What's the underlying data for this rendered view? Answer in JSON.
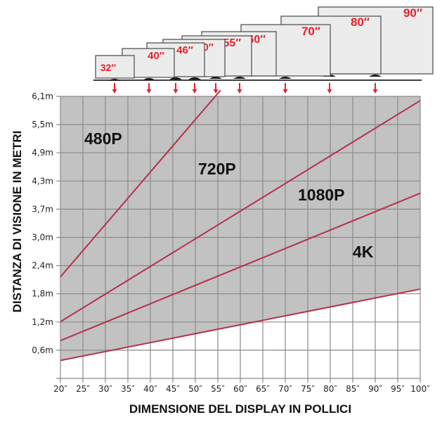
{
  "chart_data": {
    "type": "line",
    "title": "",
    "xlabel": "DIMENSIONE DEL DISPLAY  IN  POLLICI",
    "ylabel": "DISTANZA  DI  VISIONE  IN  METRI",
    "x_ticks": [
      "20″",
      "25″",
      "30″",
      "35″",
      "40″",
      "45″",
      "50″",
      "55″",
      "60″",
      "65″",
      "70″",
      "75″",
      "80″",
      "85″",
      "90″",
      "95″",
      "100″"
    ],
    "y_ticks": [
      "0,6m",
      "1,2m",
      "1,8m",
      "2,4m",
      "3,0m",
      "3,7m",
      "4,3m",
      "4,9m",
      "5,5m",
      "6,1m"
    ],
    "xlim": [
      20,
      100
    ],
    "ylim": [
      0,
      6.1
    ],
    "grid": true,
    "series": [
      {
        "name": "480P",
        "x": [
          20,
          55.6
        ],
        "y": [
          2.15,
          6.1
        ]
      },
      {
        "name": "720P",
        "x": [
          20,
          100
        ],
        "y": [
          1.2,
          5.88
        ]
      },
      {
        "name": "1080P",
        "x": [
          20,
          100
        ],
        "y": [
          0.8,
          3.92
        ]
      },
      {
        "name": "4K",
        "x": [
          20,
          100
        ],
        "y": [
          0.38,
          1.89
        ]
      }
    ],
    "zone_labels": [
      {
        "text": "480P",
        "x": 26,
        "y": 5.2
      },
      {
        "text": "720P",
        "x": 52,
        "y": 4.5
      },
      {
        "text": "1080P",
        "x": 73,
        "y": 3.45
      },
      {
        "text": "4K",
        "x": 87,
        "y": 2.55
      }
    ],
    "tv_sizes": [
      "32″",
      "40″",
      "46″",
      "50″",
      "55″",
      "60″",
      "70″",
      "80″",
      "90″"
    ],
    "colors": {
      "line": "#b5304a",
      "shaded_area": "#c2c2c2",
      "grid": "#8a8a8a",
      "tv_label": "#e8202a",
      "arrow": "#e8202a",
      "tv_screen": "#ececec"
    }
  }
}
